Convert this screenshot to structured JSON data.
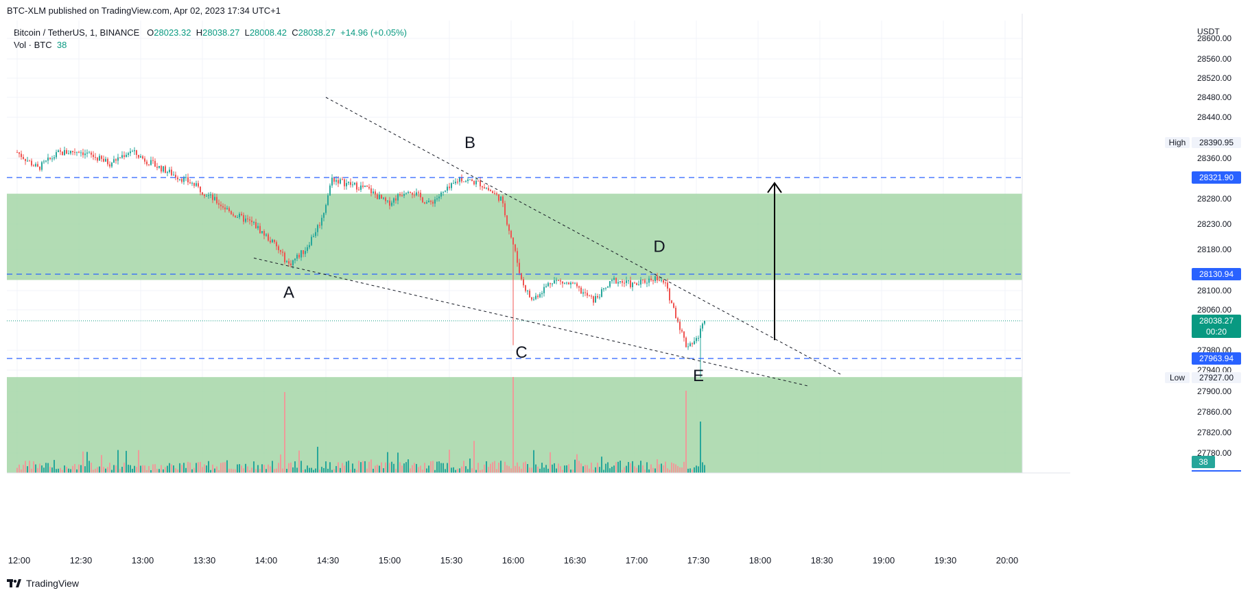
{
  "header": {
    "published": "BTC-XLM published on TradingView.com, Apr 02, 2023 17:34 UTC+1"
  },
  "legend": {
    "symbol": "Bitcoin / TetherUS, 1, BINANCE",
    "o_label": "O",
    "o": "28023.32",
    "h_label": "H",
    "h": "28038.27",
    "l_label": "L",
    "l": "28008.42",
    "c_label": "C",
    "c": "28038.27",
    "change": "+14.96 (+0.05%)",
    "vol_label": "Vol · BTC",
    "vol": "38"
  },
  "footer": {
    "brand": "TradingView"
  },
  "chart_data": {
    "type": "candlestick",
    "currency": "USDT",
    "y_ticks": [
      28600,
      28560,
      28520,
      28480,
      28440,
      28360,
      28280,
      28230,
      28180,
      28100,
      28060,
      27980,
      27940,
      27900,
      27860,
      27820,
      27780
    ],
    "y_tick_labels": [
      "28600.00",
      "28560.00",
      "28520.00",
      "28480.00",
      "28440.00",
      "28360.00",
      "28280.00",
      "28230.00",
      "28180.00",
      "28100.00",
      "28060.00",
      "27980.00",
      "27940.00",
      "27900.00",
      "27860.00",
      "27820.00",
      "27780.00"
    ],
    "x_ticks": [
      "12:00",
      "12:30",
      "13:00",
      "13:30",
      "14:00",
      "14:30",
      "15:00",
      "15:30",
      "16:00",
      "16:30",
      "17:00",
      "17:30",
      "18:00",
      "18:30",
      "19:00",
      "19:30",
      "20:00"
    ],
    "ohlc_path": [
      {
        "t": "12:00",
        "p": 28372
      },
      {
        "t": "12:10",
        "p": 28340
      },
      {
        "t": "12:20",
        "p": 28370
      },
      {
        "t": "12:30",
        "p": 28375
      },
      {
        "t": "12:45",
        "p": 28350
      },
      {
        "t": "12:55",
        "p": 28375
      },
      {
        "t": "13:05",
        "p": 28350
      },
      {
        "t": "13:15",
        "p": 28330
      },
      {
        "t": "13:25",
        "p": 28310
      },
      {
        "t": "13:35",
        "p": 28280
      },
      {
        "t": "13:45",
        "p": 28250
      },
      {
        "t": "13:55",
        "p": 28230
      },
      {
        "t": "14:05",
        "p": 28190
      },
      {
        "t": "14:12",
        "p": 28150
      },
      {
        "t": "14:20",
        "p": 28180
      },
      {
        "t": "14:28",
        "p": 28240
      },
      {
        "t": "14:33",
        "p": 28320
      },
      {
        "t": "14:40",
        "p": 28310
      },
      {
        "t": "14:50",
        "p": 28300
      },
      {
        "t": "15:00",
        "p": 28270
      },
      {
        "t": "15:10",
        "p": 28300
      },
      {
        "t": "15:20",
        "p": 28270
      },
      {
        "t": "15:30",
        "p": 28300
      },
      {
        "t": "15:35",
        "p": 28320
      },
      {
        "t": "15:45",
        "p": 28310
      },
      {
        "t": "15:55",
        "p": 28280
      },
      {
        "t": "16:01",
        "p": 28190
      },
      {
        "t": "16:05",
        "p": 28120
      },
      {
        "t": "16:10",
        "p": 28080
      },
      {
        "t": "16:20",
        "p": 28120
      },
      {
        "t": "16:30",
        "p": 28110
      },
      {
        "t": "16:40",
        "p": 28080
      },
      {
        "t": "16:50",
        "p": 28120
      },
      {
        "t": "17:00",
        "p": 28110
      },
      {
        "t": "17:10",
        "p": 28125
      },
      {
        "t": "17:15",
        "p": 28110
      },
      {
        "t": "17:20",
        "p": 28050
      },
      {
        "t": "17:25",
        "p": 27990
      },
      {
        "t": "17:30",
        "p": 28000
      },
      {
        "t": "17:34",
        "p": 28038.27
      }
    ],
    "volume": {
      "label": "Vol · BTC",
      "last": 38,
      "spike_times": [
        "16:01",
        "17:25",
        "17:32",
        "14:10"
      ]
    },
    "zones": [
      {
        "name": "supply zone",
        "from": 28120,
        "to": 28290,
        "color": "#a5d6a7"
      },
      {
        "name": "demand zone",
        "from": 27740,
        "to": 27928,
        "color": "#a5d6a7"
      }
    ],
    "levels": [
      {
        "value": "28321.90",
        "color": "#2962ff"
      },
      {
        "value": "28130.94",
        "color": "#2962ff"
      },
      {
        "value": "27963.94",
        "color": "#2962ff"
      }
    ],
    "high": {
      "label": "High",
      "value": "28390.95"
    },
    "low": {
      "label": "Low",
      "value": "27927.00"
    },
    "last_price": {
      "value": "28038.27",
      "countdown": "00:20",
      "color": "#089981"
    },
    "volume_tag": {
      "value": "38",
      "color": "#26a69a"
    },
    "wave_labels": [
      {
        "text": "A",
        "t": "14:12",
        "price": 28085
      },
      {
        "text": "B",
        "t": "15:40",
        "price": 28380
      },
      {
        "text": "C",
        "t": "16:05",
        "price": 27965
      },
      {
        "text": "D",
        "t": "17:12",
        "price": 28175
      },
      {
        "text": "E",
        "t": "17:31",
        "price": 27920
      }
    ],
    "trendlines": [
      {
        "from": {
          "t": "14:30",
          "price": 28480
        },
        "to": {
          "t": "18:40",
          "price": 27933
        }
      },
      {
        "from": {
          "t": "13:55",
          "price": 28163
        },
        "to": {
          "t": "18:25",
          "price": 27910
        }
      }
    ],
    "target_arrow": {
      "from": {
        "t": "18:08",
        "price": 28000
      },
      "to": {
        "t": "18:08",
        "price": 28321.9
      }
    },
    "colors": {
      "up": "#26a69a",
      "down": "#ef5350",
      "vol_up": "#26a69a",
      "vol_down": "#ef9a9a",
      "grid": "#f0f3fa"
    }
  }
}
